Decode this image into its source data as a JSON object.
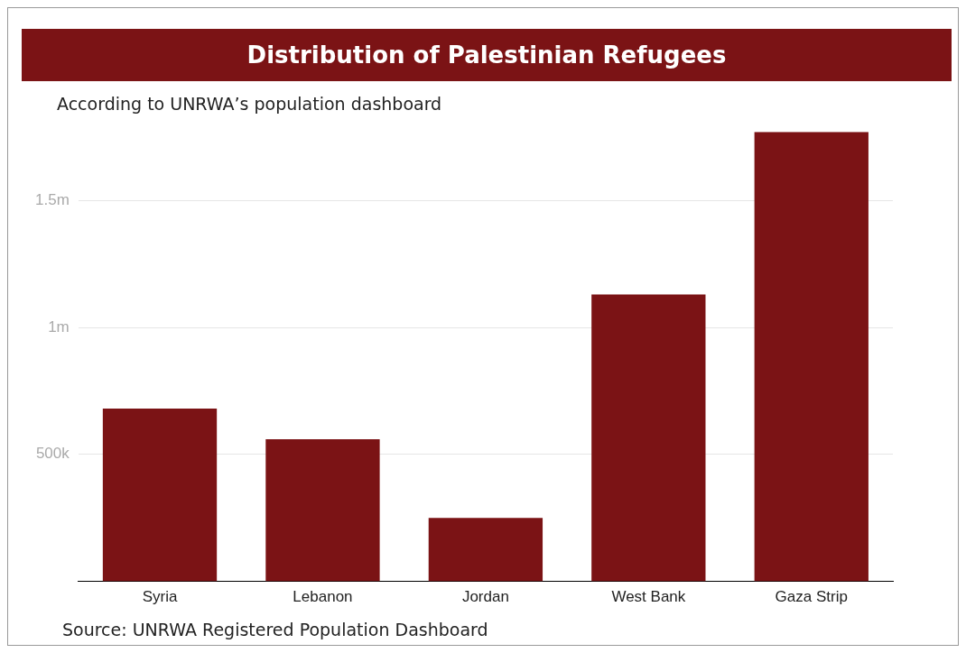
{
  "chart_data": {
    "type": "bar",
    "title": "Distribution of Palestinian Refugees",
    "subtitle": "According to UNRWA’s population dashboard",
    "categories": [
      "Syria",
      "Lebanon",
      "Jordan",
      "West Bank",
      "Gaza Strip"
    ],
    "values": [
      680000,
      560000,
      250000,
      1130000,
      1770000
    ],
    "color": "#7b1315",
    "ylim": [
      0,
      1770000
    ],
    "yticks": [
      {
        "value": 500000,
        "label": "500k"
      },
      {
        "value": 1000000,
        "label": "1m"
      },
      {
        "value": 1500000,
        "label": "1.5m"
      }
    ],
    "grid": "y",
    "legend": false,
    "annotations": [
      "Source: UNRWA Registered Population Dashboard"
    ]
  }
}
